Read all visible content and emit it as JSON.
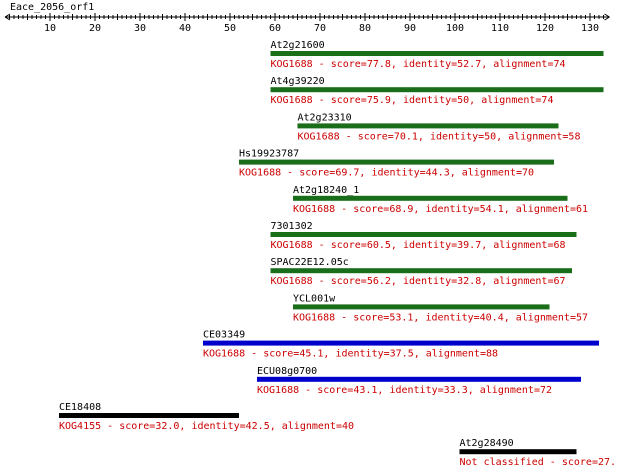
{
  "query": {
    "name": "Eace_2056_orf1",
    "axis_max": 133
  },
  "chart_data": {
    "type": "alignment-map",
    "x_ticks": [
      10,
      20,
      30,
      40,
      50,
      60,
      70,
      80,
      90,
      100,
      110,
      120,
      130
    ],
    "hits": [
      {
        "name": "At2g21600",
        "desc": "KOG1688 - score=77.8, identity=52.7, alignment=74",
        "start": 59,
        "end": 133,
        "color": "#1a6e1a"
      },
      {
        "name": "At4g39220",
        "desc": "KOG1688 - score=75.9, identity=50, alignment=74",
        "start": 59,
        "end": 133,
        "color": "#1a6e1a"
      },
      {
        "name": "At2g23310",
        "desc": "KOG1688 - score=70.1, identity=50, alignment=58",
        "start": 65,
        "end": 123,
        "color": "#1a6e1a"
      },
      {
        "name": "Hs19923787",
        "desc": "KOG1688 - score=69.7, identity=44.3, alignment=70",
        "start": 52,
        "end": 122,
        "color": "#1a6e1a"
      },
      {
        "name": "At2g18240_1",
        "desc": "KOG1688 - score=68.9, identity=54.1, alignment=61",
        "start": 64,
        "end": 125,
        "color": "#1a6e1a"
      },
      {
        "name": "7301302",
        "desc": "KOG1688 - score=60.5, identity=39.7, alignment=68",
        "start": 59,
        "end": 127,
        "color": "#1a6e1a"
      },
      {
        "name": "SPAC22E12.05c",
        "desc": "KOG1688 - score=56.2, identity=32.8, alignment=67",
        "start": 59,
        "end": 126,
        "color": "#1a6e1a"
      },
      {
        "name": "YCL001w",
        "desc": "KOG1688 - score=53.1, identity=40.4, alignment=57",
        "start": 64,
        "end": 121,
        "color": "#1a6e1a"
      },
      {
        "name": "CE03349",
        "desc": "KOG1688 - score=45.1, identity=37.5, alignment=88",
        "start": 44,
        "end": 132,
        "color": "#0000cc"
      },
      {
        "name": "ECU08g0700",
        "desc": "KOG1688 - score=43.1, identity=33.3, alignment=72",
        "start": 56,
        "end": 128,
        "color": "#0000cc"
      },
      {
        "name": "CE18408",
        "desc": "KOG4155 - score=32.0, identity=42.5, alignment=40",
        "start": 12,
        "end": 52,
        "color": "#000000"
      },
      {
        "name": "At2g28490",
        "desc": "Not classified - score=27.",
        "start": 101,
        "end": 127,
        "color": "#000000"
      }
    ]
  }
}
